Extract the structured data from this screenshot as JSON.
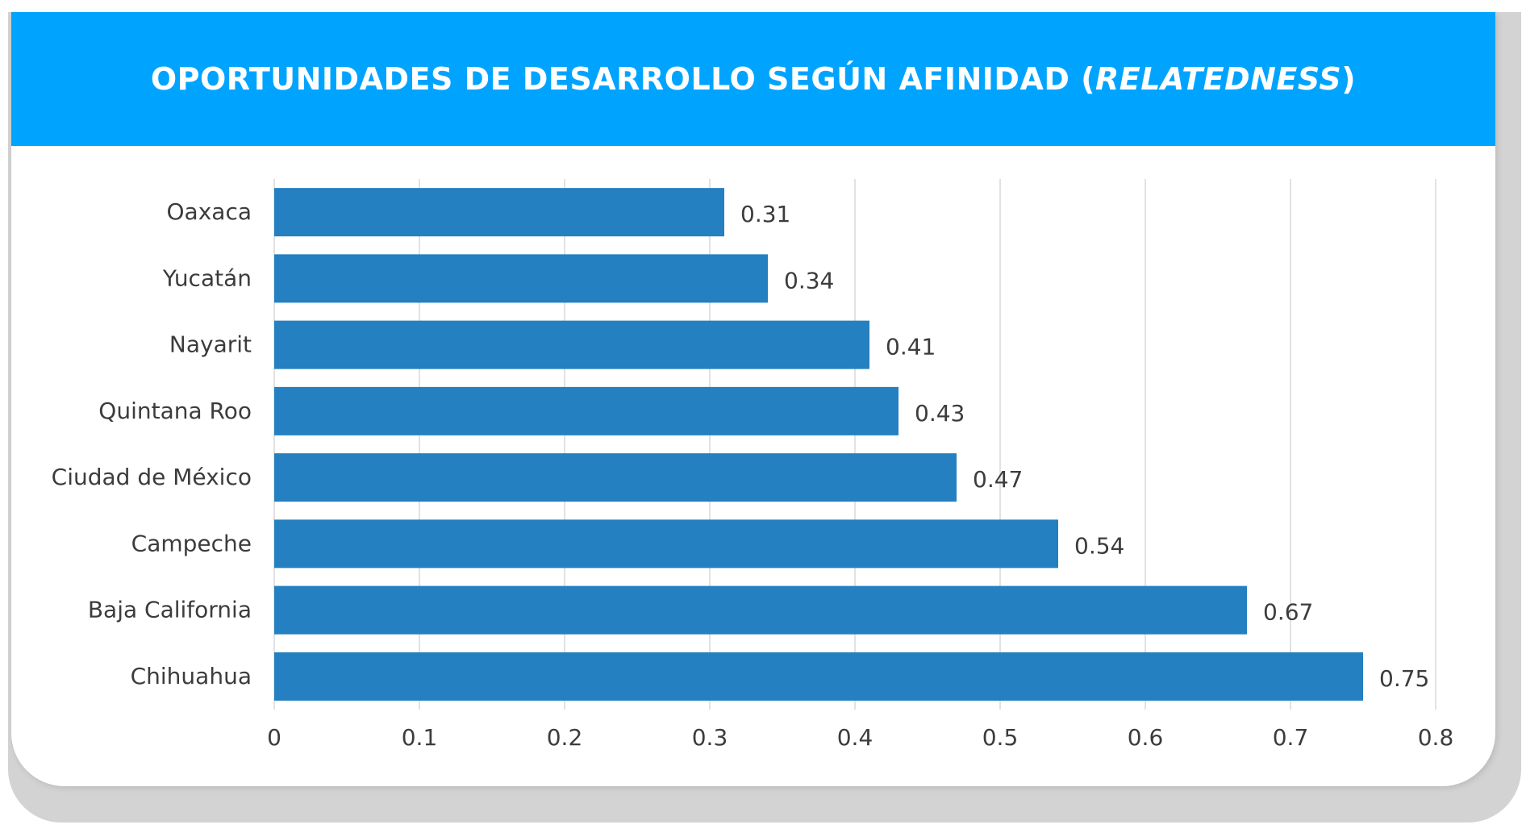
{
  "title": {
    "main": "OPORTUNIDADES DE DESARROLLO SEGÚN AFINIDAD (",
    "italic": "RELATEDNESS",
    "close": ")"
  },
  "colors": {
    "header": "#00a4ff",
    "bar": "#2480c0",
    "grid": "#d9d9d9",
    "text": "#3c3c3c"
  },
  "chart_data": {
    "type": "bar",
    "orientation": "horizontal",
    "categories": [
      "Oaxaca",
      "Yucatán",
      "Nayarit",
      "Quintana Roo",
      "Ciudad de México",
      "Campeche",
      "Baja California",
      "Chihuahua"
    ],
    "values": [
      0.31,
      0.34,
      0.41,
      0.43,
      0.47,
      0.54,
      0.67,
      0.75
    ],
    "value_labels": [
      "0.31",
      "0.34",
      "0.41",
      "0.43",
      "0.47",
      "0.54",
      "0.67",
      "0.75"
    ],
    "xlim": [
      0,
      0.8
    ],
    "xticks": [
      0,
      0.1,
      0.2,
      0.3,
      0.4,
      0.5,
      0.6,
      0.7,
      0.8
    ],
    "xtick_labels": [
      "0",
      "0.1",
      "0.2",
      "0.3",
      "0.4",
      "0.5",
      "0.6",
      "0.7",
      "0.8"
    ],
    "grid": true,
    "legend": false,
    "xlabel": "",
    "ylabel": ""
  }
}
